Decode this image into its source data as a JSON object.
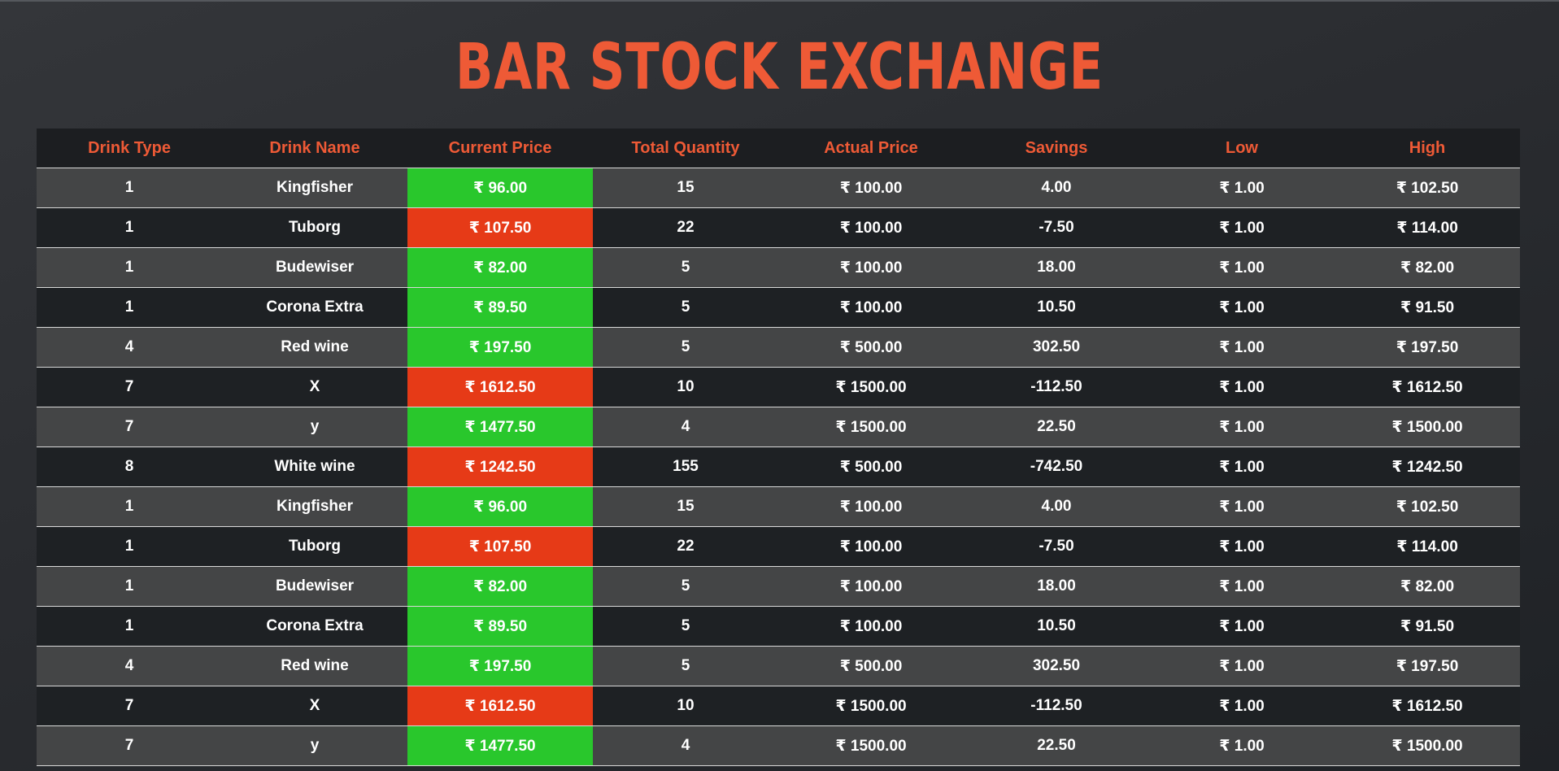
{
  "title": "BAR STOCK EXCHANGE",
  "colors": {
    "accent": "#ee5a36",
    "price_down": "#29c72c",
    "price_up": "#e63a17",
    "row_light": "#444546",
    "row_dark": "#1e2124"
  },
  "table": {
    "headers": [
      "Drink Type",
      "Drink Name",
      "Current Price",
      "Total Quantity",
      "Actual Price",
      "Savings",
      "Low",
      "High"
    ],
    "rows": [
      {
        "type": "1",
        "name": "Kingfisher",
        "current": "₹ 96.00",
        "status": "up",
        "qty": "15",
        "actual": "₹ 100.00",
        "savings": "4.00",
        "low": "₹ 1.00",
        "high": "₹ 102.50"
      },
      {
        "type": "1",
        "name": "Tuborg",
        "current": "₹ 107.50",
        "status": "down",
        "qty": "22",
        "actual": "₹ 100.00",
        "savings": "-7.50",
        "low": "₹ 1.00",
        "high": "₹ 114.00"
      },
      {
        "type": "1",
        "name": "Budewiser",
        "current": "₹ 82.00",
        "status": "up",
        "qty": "5",
        "actual": "₹ 100.00",
        "savings": "18.00",
        "low": "₹ 1.00",
        "high": "₹ 82.00"
      },
      {
        "type": "1",
        "name": "Corona Extra",
        "current": "₹ 89.50",
        "status": "up",
        "qty": "5",
        "actual": "₹ 100.00",
        "savings": "10.50",
        "low": "₹ 1.00",
        "high": "₹ 91.50"
      },
      {
        "type": "4",
        "name": "Red wine",
        "current": "₹ 197.50",
        "status": "up",
        "qty": "5",
        "actual": "₹ 500.00",
        "savings": "302.50",
        "low": "₹ 1.00",
        "high": "₹ 197.50"
      },
      {
        "type": "7",
        "name": "X",
        "current": "₹ 1612.50",
        "status": "down",
        "qty": "10",
        "actual": "₹ 1500.00",
        "savings": "-112.50",
        "low": "₹ 1.00",
        "high": "₹ 1612.50"
      },
      {
        "type": "7",
        "name": "y",
        "current": "₹ 1477.50",
        "status": "up",
        "qty": "4",
        "actual": "₹ 1500.00",
        "savings": "22.50",
        "low": "₹ 1.00",
        "high": "₹ 1500.00"
      },
      {
        "type": "8",
        "name": "White wine",
        "current": "₹ 1242.50",
        "status": "down",
        "qty": "155",
        "actual": "₹ 500.00",
        "savings": "-742.50",
        "low": "₹ 1.00",
        "high": "₹ 1242.50"
      },
      {
        "type": "1",
        "name": "Kingfisher",
        "current": "₹ 96.00",
        "status": "up",
        "qty": "15",
        "actual": "₹ 100.00",
        "savings": "4.00",
        "low": "₹ 1.00",
        "high": "₹ 102.50"
      },
      {
        "type": "1",
        "name": "Tuborg",
        "current": "₹ 107.50",
        "status": "down",
        "qty": "22",
        "actual": "₹ 100.00",
        "savings": "-7.50",
        "low": "₹ 1.00",
        "high": "₹ 114.00"
      },
      {
        "type": "1",
        "name": "Budewiser",
        "current": "₹ 82.00",
        "status": "up",
        "qty": "5",
        "actual": "₹ 100.00",
        "savings": "18.00",
        "low": "₹ 1.00",
        "high": "₹ 82.00"
      },
      {
        "type": "1",
        "name": "Corona Extra",
        "current": "₹ 89.50",
        "status": "up",
        "qty": "5",
        "actual": "₹ 100.00",
        "savings": "10.50",
        "low": "₹ 1.00",
        "high": "₹ 91.50"
      },
      {
        "type": "4",
        "name": "Red wine",
        "current": "₹ 197.50",
        "status": "up",
        "qty": "5",
        "actual": "₹ 500.00",
        "savings": "302.50",
        "low": "₹ 1.00",
        "high": "₹ 197.50"
      },
      {
        "type": "7",
        "name": "X",
        "current": "₹ 1612.50",
        "status": "down",
        "qty": "10",
        "actual": "₹ 1500.00",
        "savings": "-112.50",
        "low": "₹ 1.00",
        "high": "₹ 1612.50"
      },
      {
        "type": "7",
        "name": "y",
        "current": "₹ 1477.50",
        "status": "up",
        "qty": "4",
        "actual": "₹ 1500.00",
        "savings": "22.50",
        "low": "₹ 1.00",
        "high": "₹ 1500.00"
      }
    ]
  }
}
